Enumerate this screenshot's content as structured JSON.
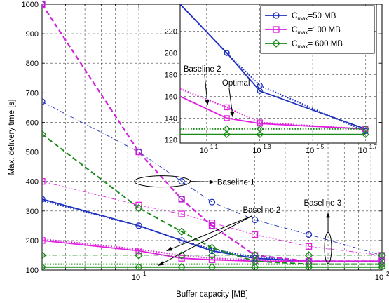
{
  "chart_data": [
    {
      "id": "main",
      "type": "line",
      "xlabel": "Buffer capacity [MB]",
      "ylabel": "Max. delivery time [s]",
      "xscale": "log",
      "xlim": [
        4,
        100
      ],
      "ylim": [
        100,
        1000
      ],
      "xticks": [
        10,
        100
      ],
      "yticks": [
        100,
        200,
        300,
        400,
        500,
        600,
        700,
        800,
        900,
        1000
      ],
      "grid": true,
      "series": [
        {
          "group": "50",
          "variant": "optimal",
          "color": "#1f31c0",
          "style": "solid",
          "width": 1.8,
          "marker": "circle",
          "x": [
            4,
            10,
            15,
            20,
            30,
            50,
            100
          ],
          "y": [
            340,
            250,
            200,
            165,
            140,
            130,
            130
          ]
        },
        {
          "group": "50",
          "variant": "baseline2",
          "color": "#1f31c0",
          "style": "dotted",
          "width": 2,
          "marker": "none",
          "x": [
            4,
            10,
            15,
            20,
            30,
            50,
            100
          ],
          "y": [
            335,
            250,
            200,
            170,
            145,
            130,
            130
          ]
        },
        {
          "group": "50",
          "variant": "baseline1",
          "color": "#1f31c0",
          "style": "dashed",
          "width": 2,
          "marker": "circle",
          "x": [
            4,
            10,
            15,
            20,
            30,
            50,
            100
          ],
          "y": [
            1000,
            500,
            340,
            250,
            150,
            130,
            130
          ]
        },
        {
          "group": "50",
          "variant": "baseline3",
          "color": "#1f31c0",
          "style": "dashdot",
          "width": 0.9,
          "marker": "circle",
          "x": [
            4,
            10,
            15,
            20,
            30,
            50,
            100
          ],
          "y": [
            670,
            500,
            400,
            330,
            270,
            220,
            150
          ]
        },
        {
          "group": "100",
          "variant": "optimal",
          "color": "#e01ee0",
          "style": "solid",
          "width": 1.8,
          "marker": "square",
          "x": [
            4,
            10,
            15,
            20,
            30,
            50,
            100
          ],
          "y": [
            200,
            165,
            140,
            135,
            130,
            130,
            130
          ]
        },
        {
          "group": "100",
          "variant": "baseline2",
          "color": "#e01ee0",
          "style": "dotted",
          "width": 2,
          "marker": "none",
          "x": [
            4,
            10,
            15,
            20,
            30,
            50,
            100
          ],
          "y": [
            205,
            170,
            150,
            140,
            135,
            130,
            130
          ]
        },
        {
          "group": "100",
          "variant": "baseline1",
          "color": "#e01ee0",
          "style": "dashed",
          "width": 2,
          "marker": "square",
          "x": [
            4,
            10,
            15,
            20,
            30,
            50,
            100
          ],
          "y": [
            1000,
            500,
            340,
            250,
            150,
            130,
            130
          ]
        },
        {
          "group": "100",
          "variant": "baseline3",
          "color": "#e01ee0",
          "style": "dashdot",
          "width": 0.9,
          "marker": "square",
          "x": [
            4,
            10,
            15,
            20,
            30,
            50,
            100
          ],
          "y": [
            400,
            320,
            290,
            260,
            220,
            180,
            150
          ]
        },
        {
          "group": "600",
          "variant": "optimal",
          "color": "#178a17",
          "style": "solid",
          "width": 1.8,
          "marker": "diamond",
          "x": [
            4,
            10,
            15,
            20,
            30,
            50,
            100
          ],
          "y": [
            110,
            110,
            110,
            110,
            110,
            110,
            110
          ]
        },
        {
          "group": "600",
          "variant": "baseline2",
          "color": "#178a17",
          "style": "dotted",
          "width": 2,
          "marker": "none",
          "x": [
            4,
            10,
            15,
            20,
            30,
            50,
            100
          ],
          "y": [
            120,
            120,
            120,
            120,
            120,
            120,
            120
          ]
        },
        {
          "group": "600",
          "variant": "baseline1",
          "color": "#178a17",
          "style": "dashed",
          "width": 2,
          "marker": "diamond",
          "x": [
            4,
            10,
            15,
            20,
            30,
            50,
            100
          ],
          "y": [
            560,
            310,
            230,
            175,
            130,
            120,
            120
          ]
        },
        {
          "group": "600",
          "variant": "baseline3",
          "color": "#178a17",
          "style": "dashdot",
          "width": 0.9,
          "marker": "diamond",
          "x": [
            4,
            10,
            15,
            20,
            30,
            50,
            100
          ],
          "y": [
            150,
            150,
            150,
            150,
            150,
            150,
            150
          ]
        }
      ],
      "annotations": [
        {
          "text": "Baseline 1",
          "ellipse_at": {
            "x": 12.5,
            "y": 400
          },
          "label_at": {
            "x": 21,
            "y": 398
          }
        },
        {
          "text": "Baseline 2",
          "label_at": {
            "x": 32,
            "y": 295
          },
          "arrows_to": [
            {
              "x": 12,
              "y": 115
            },
            {
              "x": 13,
              "y": 165
            }
          ]
        },
        {
          "text": "Baseline 3",
          "label_at": {
            "x": 57,
            "y": 318
          },
          "ellipse_at": {
            "x": 60,
            "y": 175
          }
        }
      ]
    },
    {
      "id": "inset",
      "type": "line",
      "xscale": "log",
      "xlim": [
        10,
        55
      ],
      "ylim": [
        117,
        245
      ],
      "xticks": [
        12.59,
        19.95,
        31.62,
        50.12
      ],
      "xtick_labels": [
        {
          "base": "10",
          "exp": "1.1"
        },
        {
          "base": "10",
          "exp": "1.3"
        },
        {
          "base": "10",
          "exp": "1.5"
        },
        {
          "base": "10",
          "exp": "1.7"
        }
      ],
      "yticks": [
        120,
        140,
        160,
        180,
        200,
        220
      ],
      "grid": true,
      "series": [
        {
          "group": "50",
          "variant": "optimal",
          "color": "#1f31c0",
          "style": "solid",
          "width": 1.8,
          "marker": "circle",
          "x": [
            10,
            15,
            20,
            50
          ],
          "y": [
            245,
            200,
            165,
            130
          ]
        },
        {
          "group": "50",
          "variant": "baseline2",
          "color": "#1f31c0",
          "style": "dotted",
          "width": 2,
          "marker": "circle",
          "x": [
            10,
            15,
            20,
            50
          ],
          "y": [
            245,
            200,
            170,
            128
          ]
        },
        {
          "group": "100",
          "variant": "optimal",
          "color": "#e01ee0",
          "style": "solid",
          "width": 1.8,
          "marker": "square",
          "x": [
            10,
            15,
            20,
            50
          ],
          "y": [
            160,
            140,
            135,
            130
          ]
        },
        {
          "group": "100",
          "variant": "baseline2",
          "color": "#e01ee0",
          "style": "dotted",
          "width": 2,
          "marker": "square",
          "x": [
            10,
            15,
            20,
            50
          ],
          "y": [
            167,
            150,
            136,
            130
          ]
        },
        {
          "group": "600",
          "variant": "optimal",
          "color": "#178a17",
          "style": "solid",
          "width": 1.8,
          "marker": "diamond",
          "x": [
            10,
            15,
            20,
            50
          ],
          "y": [
            125,
            125,
            125,
            125
          ]
        },
        {
          "group": "600",
          "variant": "baseline2",
          "color": "#178a17",
          "style": "dotted",
          "width": 2,
          "marker": "diamond",
          "x": [
            10,
            15,
            20,
            50
          ],
          "y": [
            130,
            130,
            130,
            130
          ]
        }
      ],
      "annotations": [
        {
          "text": "Baseline 2",
          "label_at": {
            "x": 10.3,
            "y": 183
          },
          "arrow_to": {
            "x": 12.7,
            "y": 152
          }
        },
        {
          "text": "Optimal",
          "label_at": {
            "x": 14.4,
            "y": 170
          },
          "arrow_to": {
            "x": 15.8,
            "y": 141
          }
        }
      ]
    }
  ],
  "legend": {
    "placement": "inset top-right",
    "entries": [
      {
        "base": "C",
        "sub": "max",
        "suffix": "=50 MB",
        "color": "#1f31c0",
        "marker": "circle"
      },
      {
        "base": "C",
        "sub": "max",
        "suffix": "=100 MB",
        "color": "#e01ee0",
        "marker": "square"
      },
      {
        "base": "C",
        "sub": "max",
        "suffix": "= 600 MB",
        "color": "#178a17",
        "marker": "diamond"
      }
    ]
  }
}
